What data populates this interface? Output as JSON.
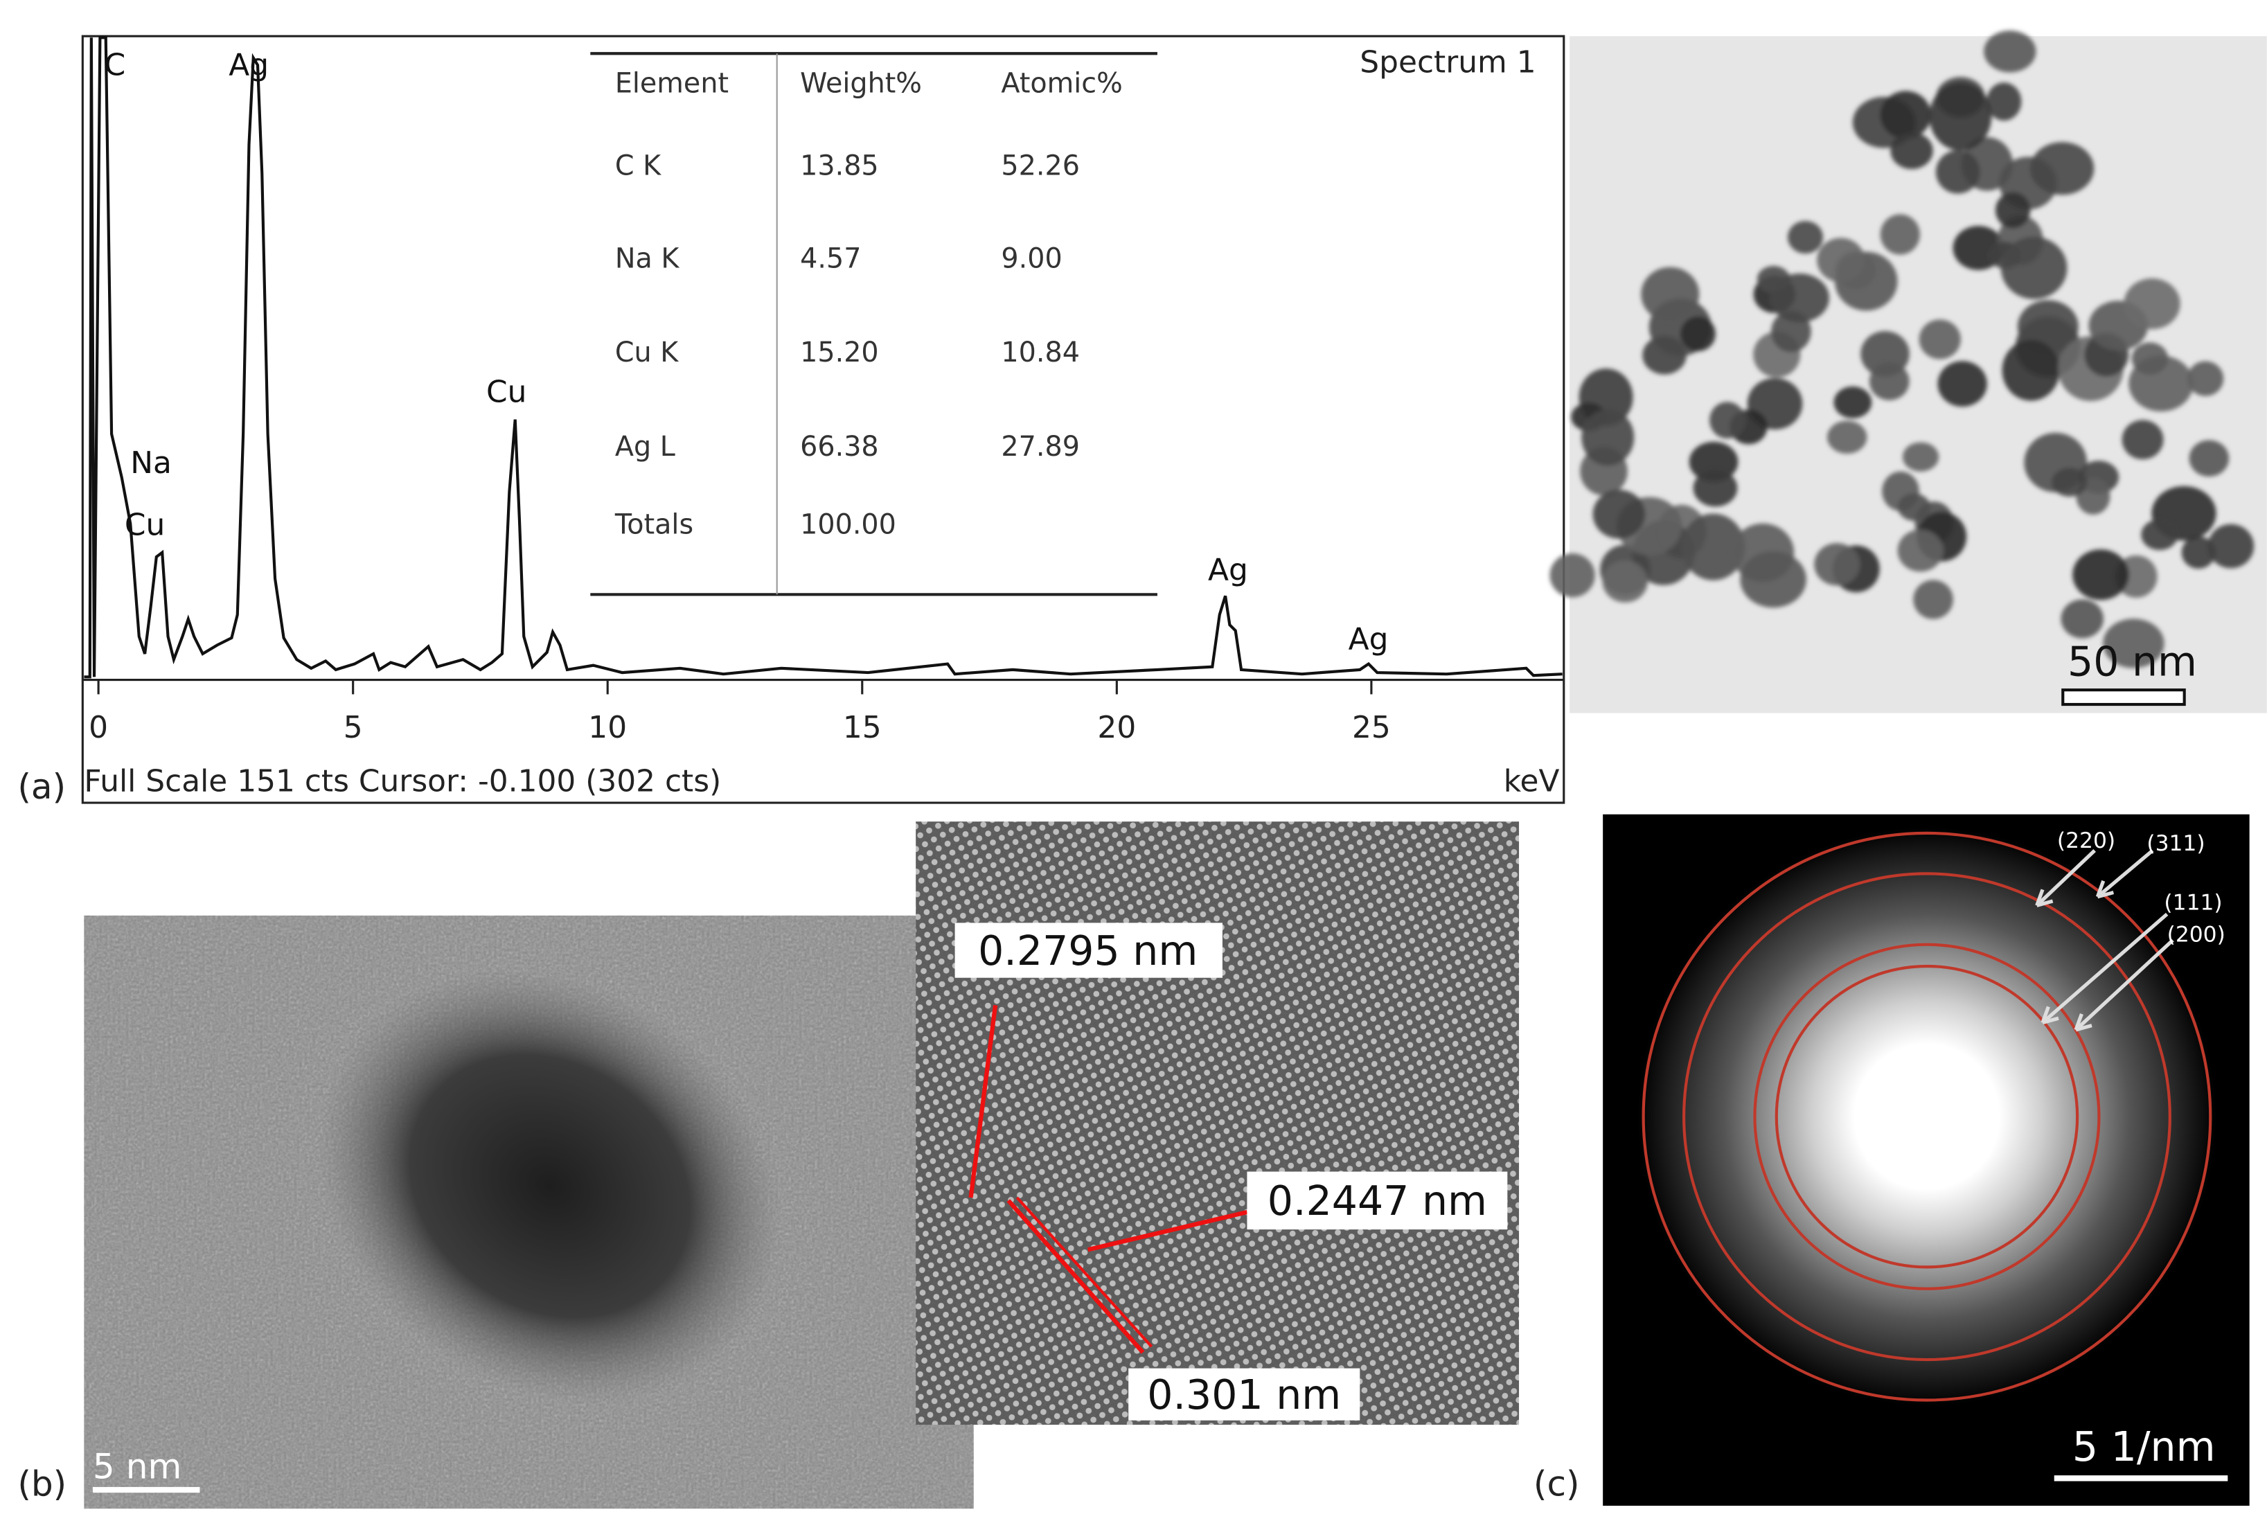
{
  "panel_a": {
    "label": "(a)",
    "title": "Spectrum 1",
    "xlim": [
      -0.31,
      28.78
    ],
    "xticks": [
      0,
      5,
      10,
      15,
      20,
      25
    ],
    "x_unit": "keV",
    "footer": "Full Scale 151 cts Cursor: -0.100  (302 cts)",
    "peak_labels": [
      "C",
      "Ag",
      "Na",
      "Cu",
      "Cu",
      "Ag",
      "Ag"
    ],
    "table": {
      "header": [
        "Element",
        "Weight%",
        "Atomic%"
      ],
      "rows": [
        [
          "C K",
          "13.85",
          "52.26"
        ],
        [
          "Na K",
          "4.57",
          "9.00"
        ],
        [
          "Cu K",
          "15.20",
          "10.84"
        ],
        [
          "Ag L",
          "66.38",
          "27.89"
        ],
        [
          "Totals",
          "100.00"
        ]
      ]
    }
  },
  "panel_tem": {
    "scale_bar": "50 nm"
  },
  "panel_b": {
    "label": "(b)",
    "scale_bar": "5 nm",
    "d_spacings": [
      "0.2795 nm",
      "0.2447 nm",
      "0.301 nm"
    ]
  },
  "panel_c": {
    "label": "(c)",
    "scale_bar": "5 1/nm",
    "rings": [
      "(220)",
      "(311)",
      "(111)",
      "(200)"
    ]
  }
}
